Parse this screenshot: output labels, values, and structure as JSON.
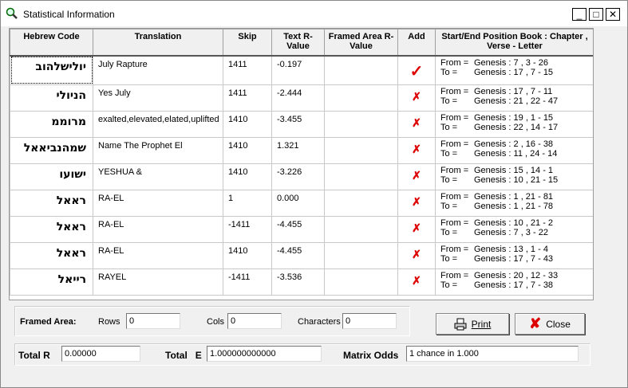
{
  "window": {
    "title": "Statistical Information",
    "minimize": "_",
    "maximize": "□",
    "close": "✕"
  },
  "table": {
    "headers": [
      "Hebrew Code",
      "Translation",
      "Skip",
      "Text R-Value",
      "Framed Area R-Value",
      "Add",
      "Start/End Position Book : Chapter , Verse - Letter"
    ],
    "from_label": "From =",
    "to_label": "To =",
    "rows": [
      {
        "hebrew": "יולישלהוב",
        "translation": "July Rapture",
        "skip": "1411",
        "text_r": "-0.197",
        "framed_r": "",
        "add": "check",
        "from": "Genesis : 7 , 3 - 26",
        "to": "Genesis : 17 , 7 - 15"
      },
      {
        "hebrew": "הניולי",
        "translation": "Yes July",
        "skip": "1411",
        "text_r": "-2.444",
        "framed_r": "",
        "add": "cross",
        "from": "Genesis : 17 , 7 - 11",
        "to": "Genesis : 21 , 22 - 47"
      },
      {
        "hebrew": "מרוממ",
        "translation": "exalted,elevated,elated,uplifted",
        "skip": "1410",
        "text_r": "-3.455",
        "framed_r": "",
        "add": "cross",
        "from": "Genesis : 19 , 1 - 15",
        "to": "Genesis : 22 , 14 - 17"
      },
      {
        "hebrew": "שמהנביאאל",
        "translation": "Name The Prophet El",
        "skip": "1410",
        "text_r": "1.321",
        "framed_r": "",
        "add": "cross",
        "from": "Genesis : 2 , 16 - 38",
        "to": "Genesis : 11 , 24 - 14"
      },
      {
        "hebrew": "ישועו",
        "translation": "YESHUA &",
        "skip": "1410",
        "text_r": "-3.226",
        "framed_r": "",
        "add": "cross",
        "from": "Genesis : 15 , 14 - 1",
        "to": "Genesis : 10 , 21 - 15"
      },
      {
        "hebrew": "ראאל",
        "translation": "RA-EL",
        "skip": "1",
        "text_r": "0.000",
        "framed_r": "",
        "add": "cross",
        "from": "Genesis : 1 , 21 - 81",
        "to": "Genesis : 1 , 21 - 78"
      },
      {
        "hebrew": "ראאל",
        "translation": "RA-EL",
        "skip": "-1411",
        "text_r": "-4.455",
        "framed_r": "",
        "add": "cross",
        "from": "Genesis : 10 , 21 - 2",
        "to": "Genesis : 7 , 3 - 22"
      },
      {
        "hebrew": "ראאל",
        "translation": "RA-EL",
        "skip": "1410",
        "text_r": "-4.455",
        "framed_r": "",
        "add": "cross",
        "from": "Genesis : 13 , 1 - 4",
        "to": "Genesis : 17 , 7 - 43"
      },
      {
        "hebrew": "רייאל",
        "translation": "RAYEL",
        "skip": "-1411",
        "text_r": "-3.536",
        "framed_r": "",
        "add": "cross",
        "from": "Genesis : 20 , 12 - 33",
        "to": "Genesis : 17 , 7 - 38"
      }
    ]
  },
  "framed_area": {
    "label": "Framed Area:",
    "rows_label": "Rows",
    "rows": "0",
    "cols_label": "Cols",
    "cols": "0",
    "chars_label": "Characters",
    "chars": "0"
  },
  "buttons": {
    "print": "Print",
    "close": "Close"
  },
  "totals": {
    "total_r_label": "Total R",
    "total_r": "0.00000",
    "total_e_label": "Total   E",
    "total_e": "1.000000000000",
    "odds_label": "Matrix Odds",
    "odds": "1 chance in 1.000"
  },
  "colors": {
    "mark": "#dd0000"
  }
}
